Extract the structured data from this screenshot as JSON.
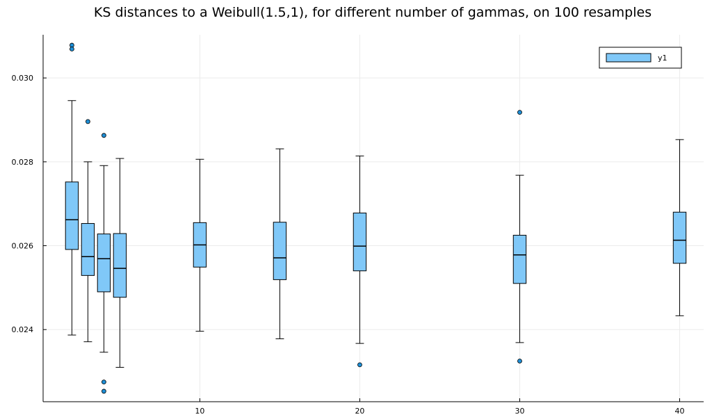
{
  "chart_data": {
    "type": "box",
    "title": "KS distances to a Weibull(1.5,1), for different number of gammas, on 100 resamples",
    "xlabel": "",
    "ylabel": "",
    "xlim": [
      0.2,
      41.5
    ],
    "ylim": [
      0.02228,
      0.03103
    ],
    "x_ticks": [
      10,
      20,
      30,
      40
    ],
    "y_ticks": [
      0.024,
      0.026,
      0.028,
      0.03
    ],
    "x_tick_labels": [
      "10",
      "20",
      "30",
      "40"
    ],
    "y_tick_labels": [
      "0.024",
      "0.026",
      "0.028",
      "0.030"
    ],
    "grid": true,
    "legend_position": "top-right",
    "colors": {
      "box_fill": "#80c8f8",
      "box_stroke": "#000000",
      "outlier_fill": "#1f8fd6",
      "grid": "#ebebeb"
    },
    "series": [
      {
        "name": "y1",
        "boxes": [
          {
            "x": 2,
            "whisker_low": 0.02387,
            "q1": 0.02591,
            "median": 0.02662,
            "q3": 0.02752,
            "whisker_high": 0.02946,
            "outliers": [
              0.03078,
              0.03069
            ]
          },
          {
            "x": 3,
            "whisker_low": 0.02371,
            "q1": 0.02529,
            "median": 0.02574,
            "q3": 0.02653,
            "whisker_high": 0.028,
            "outliers": [
              0.02896
            ]
          },
          {
            "x": 4,
            "whisker_low": 0.02346,
            "q1": 0.0249,
            "median": 0.02569,
            "q3": 0.02628,
            "whisker_high": 0.02791,
            "outliers": [
              0.02863,
              0.02275,
              0.02253
            ]
          },
          {
            "x": 5,
            "whisker_low": 0.0231,
            "q1": 0.02477,
            "median": 0.02546,
            "q3": 0.02629,
            "whisker_high": 0.02808,
            "outliers": []
          },
          {
            "x": 10,
            "whisker_low": 0.02396,
            "q1": 0.02549,
            "median": 0.02602,
            "q3": 0.02655,
            "whisker_high": 0.02806,
            "outliers": []
          },
          {
            "x": 15,
            "whisker_low": 0.02378,
            "q1": 0.02519,
            "median": 0.02571,
            "q3": 0.02656,
            "whisker_high": 0.02831,
            "outliers": []
          },
          {
            "x": 20,
            "whisker_low": 0.02367,
            "q1": 0.0254,
            "median": 0.02599,
            "q3": 0.02678,
            "whisker_high": 0.02814,
            "outliers": [
              0.02316
            ]
          },
          {
            "x": 30,
            "whisker_low": 0.02369,
            "q1": 0.0251,
            "median": 0.02578,
            "q3": 0.02625,
            "whisker_high": 0.02768,
            "outliers": [
              0.02918,
              0.02325
            ]
          },
          {
            "x": 40,
            "whisker_low": 0.02433,
            "q1": 0.02558,
            "median": 0.02613,
            "q3": 0.0268,
            "whisker_high": 0.02853,
            "outliers": []
          }
        ]
      }
    ]
  }
}
